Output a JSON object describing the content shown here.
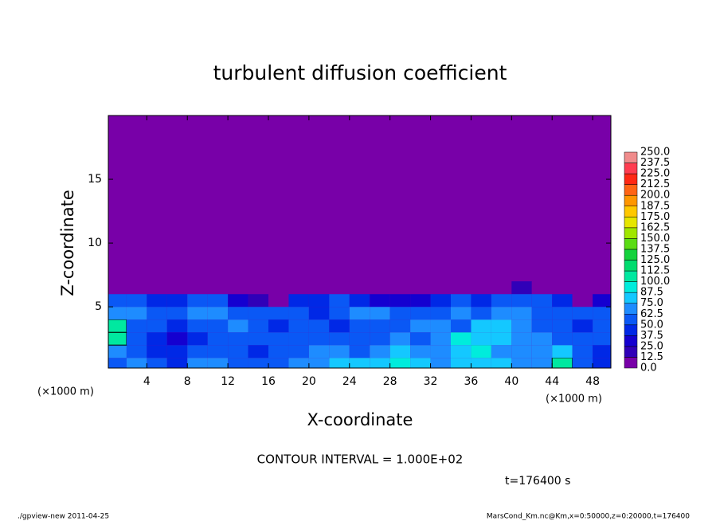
{
  "chart_data": {
    "type": "heatmap",
    "title": "turbulent diffusion coefficient",
    "xlabel": "X-coordinate",
    "ylabel": "Z-coordinate",
    "xunit": "(×1000 m)",
    "yunit": "(×1000 m)",
    "annotation": "CONTOUR INTERVAL = 1.000E+02",
    "contour_interval": 100,
    "time_label": "t=176400 s",
    "footer_left": "./gpview-new   2011-04-25",
    "footer_right": "MarsCond_Km.nc@Km,x=0:50000,z=0:20000,t=176400",
    "xlim": [
      0.2,
      49.8
    ],
    "ylim": [
      0.2,
      20
    ],
    "xticks": [
      4,
      8,
      12,
      16,
      20,
      24,
      28,
      32,
      36,
      40,
      44,
      48
    ],
    "yticks": [
      5,
      10,
      15
    ],
    "x": [
      1,
      3,
      5,
      7,
      9,
      11,
      13,
      15,
      17,
      19,
      21,
      23,
      25,
      27,
      29,
      31,
      33,
      35,
      37,
      39,
      41,
      43,
      45,
      47,
      49
    ],
    "y": [
      0.5,
      1.5,
      2.5,
      3.5,
      4.5,
      5.5,
      6.5
    ],
    "z": [
      [
        60,
        70,
        55,
        45,
        70,
        65,
        60,
        55,
        50,
        65,
        70,
        75,
        80,
        85,
        90,
        80,
        70,
        75,
        85,
        80,
        70,
        65,
        110,
        60,
        40
      ],
      [
        70,
        60,
        45,
        40,
        60,
        55,
        50,
        45,
        55,
        60,
        70,
        65,
        60,
        70,
        75,
        70,
        65,
        80,
        90,
        70,
        65,
        70,
        80,
        55,
        45
      ],
      [
        110,
        55,
        40,
        35,
        45,
        50,
        60,
        55,
        50,
        60,
        55,
        60,
        50,
        60,
        65,
        60,
        70,
        95,
        85,
        75,
        70,
        65,
        60,
        50,
        50
      ],
      [
        105,
        60,
        50,
        45,
        55,
        60,
        70,
        50,
        45,
        55,
        50,
        45,
        55,
        60,
        55,
        70,
        65,
        60,
        75,
        80,
        70,
        60,
        55,
        45,
        55
      ],
      [
        70,
        65,
        60,
        55,
        65,
        70,
        60,
        55,
        50,
        60,
        45,
        55,
        65,
        70,
        60,
        55,
        60,
        65,
        60,
        70,
        65,
        60,
        55,
        50,
        60
      ],
      [
        55,
        50,
        45,
        40,
        50,
        55,
        35,
        20,
        10,
        40,
        45,
        50,
        45,
        35,
        30,
        25,
        40,
        50,
        45,
        55,
        60,
        55,
        45,
        10,
        30
      ],
      [
        0,
        0,
        0,
        0,
        0,
        0,
        0,
        5,
        0,
        0,
        0,
        0,
        0,
        0,
        0,
        0,
        0,
        0,
        0,
        0,
        20,
        10,
        0,
        0,
        0
      ]
    ],
    "levels": [
      {
        "value": 0,
        "label": "0.0"
      },
      {
        "value": 12.5,
        "label": "12.5"
      },
      {
        "value": 25,
        "label": "25.0"
      },
      {
        "value": 37.5,
        "label": "37.5"
      },
      {
        "value": 50,
        "label": "50.0"
      },
      {
        "value": 62.5,
        "label": "62.5"
      },
      {
        "value": 75,
        "label": "75.0"
      },
      {
        "value": 87.5,
        "label": "87.5"
      },
      {
        "value": 100,
        "label": "100.0"
      },
      {
        "value": 112.5,
        "label": "112.5"
      },
      {
        "value": 125,
        "label": "125.0"
      },
      {
        "value": 137.5,
        "label": "137.5"
      },
      {
        "value": 150,
        "label": "150.0"
      },
      {
        "value": 162.5,
        "label": "162.5"
      },
      {
        "value": 175,
        "label": "175.0"
      },
      {
        "value": 187.5,
        "label": "187.5"
      },
      {
        "value": 200,
        "label": "200.0"
      },
      {
        "value": 212.5,
        "label": "212.5"
      },
      {
        "value": 225,
        "label": "225.0"
      },
      {
        "value": 237.5,
        "label": "237.5"
      },
      {
        "value": 250,
        "label": "250.0"
      }
    ],
    "colors": [
      "#7800a8",
      "#3000b8",
      "#1400d0",
      "#0028e6",
      "#0a58f5",
      "#1e8cff",
      "#14c8ff",
      "#00ecdc",
      "#00e8a0",
      "#00dc6e",
      "#14d23c",
      "#5adc14",
      "#a0e600",
      "#e6e600",
      "#ffc800",
      "#ff9600",
      "#ff6414",
      "#ff2814",
      "#ff3c50",
      "#f08c8c"
    ]
  }
}
